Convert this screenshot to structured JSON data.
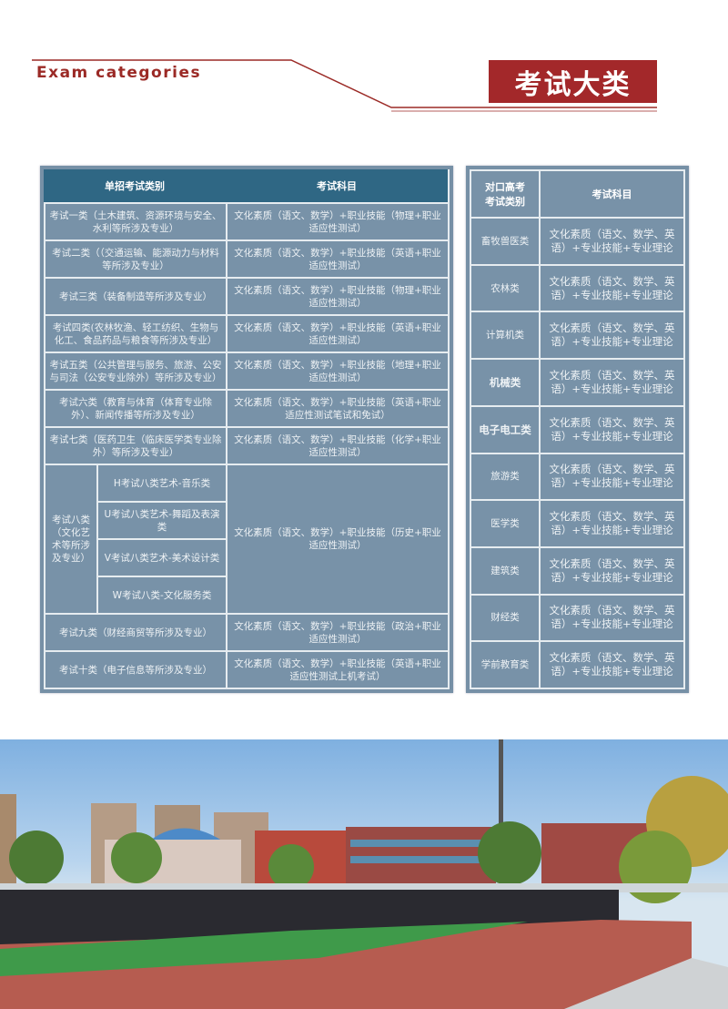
{
  "header": {
    "en_title": "Exam categories",
    "cn_title": "考试大类"
  },
  "left_table": {
    "headers": [
      "单招考试类别",
      "考试科目"
    ],
    "rows": [
      {
        "category": "考试一类（土木建筑、资源环境与安全、水利等所涉及专业）",
        "subjects": "文化素质（语文、数学）+职业技能（物理+职业适应性测试）"
      },
      {
        "category": "考试二类（（交通运输、能源动力与材料等所涉及专业）",
        "subjects": "文化素质（语文、数学）+职业技能（英语+职业适应性测试）"
      },
      {
        "category": "考试三类（装备制造等所涉及专业）",
        "subjects": "文化素质（语文、数学）+职业技能（物理+职业适应性测试）"
      },
      {
        "category": "考试四类(农林牧渔、轻工纺织、生物与化工、食品药品与粮食等所涉及专业）",
        "subjects": "文化素质（语文、数学）+职业技能（英语+职业适应性测试）"
      },
      {
        "category": "考试五类（公共管理与服务、旅游、公安与司法（公安专业除外）等所涉及专业）",
        "subjects": "文化素质（语文、数学）+职业技能（地理+职业适应性测试）"
      },
      {
        "category": "考试六类（教育与体育（体育专业除外）、新闻传播等所涉及专业）",
        "subjects": "文化素质（语文、数学）+职业技能（英语+职业适应性测试笔试和免试）"
      },
      {
        "category": "考试七类（医药卫生（临床医学类专业除外）等所涉及专业）",
        "subjects": "文化素质（语文、数学）+职业技能（化学+职业适应性测试）"
      }
    ],
    "group8": {
      "category": "考试八类（文化艺术等所涉及专业）",
      "subs": [
        "H考试八类艺术-音乐类",
        "U考试八类艺术-舞蹈及表演类",
        "V考试八类艺术-美术设计类",
        "W考试八类-文化服务类"
      ],
      "subjects": "文化素质（语文、数学）+职业技能（历史+职业适应性测试）"
    },
    "rows_after": [
      {
        "category": "考试九类（财经商贸等所涉及专业）",
        "subjects": "文化素质（语文、数学）+职业技能（政治+职业适应性测试）"
      },
      {
        "category": "考试十类（电子信息等所涉及专业）",
        "subjects": "文化素质（语文、数学）+职业技能（英语+职业适应性测试上机考试）"
      }
    ]
  },
  "right_table": {
    "headers": [
      "对口高考考试类别",
      "考试科目"
    ],
    "subjects": "文化素质（语文、数学、英语）+专业技能+专业理论",
    "categories": [
      "畜牧兽医类",
      "农林类",
      "计算机类",
      "机械类",
      "电子电工类",
      "旅游类",
      "医学类",
      "建筑类",
      "财经类",
      "学前教育类"
    ]
  },
  "colors": {
    "accent": "#a3282a",
    "table_header": "#2f6784",
    "table_cell": "#7892a8"
  }
}
